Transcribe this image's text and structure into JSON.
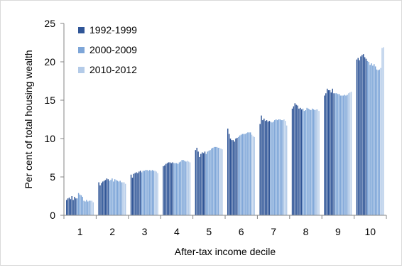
{
  "chart_data": {
    "type": "bar",
    "title": "",
    "xlabel": "After-tax income decile",
    "ylabel": "Per cent of total housing wealth",
    "ylim": [
      0,
      25
    ],
    "yticks": [
      "0",
      "5",
      "10",
      "15",
      "20",
      "25"
    ],
    "grid": false,
    "legend_position": "top-left",
    "categories": [
      "1",
      "2",
      "3",
      "4",
      "5",
      "6",
      "7",
      "8",
      "9",
      "10"
    ],
    "series": [
      {
        "name": "1992-1999",
        "color": "#2f5597",
        "values": [
          [
            2.0,
            2.2,
            2.3,
            2.1,
            2.5,
            2.0,
            2.4,
            2.2
          ],
          [
            4.3,
            3.9,
            4.2,
            4.4,
            4.5,
            4.6,
            4.8,
            4.7
          ],
          [
            5.3,
            4.9,
            5.4,
            5.5,
            5.6,
            5.5,
            5.7,
            5.8
          ],
          [
            6.4,
            6.5,
            6.7,
            6.8,
            6.9,
            6.9,
            6.8,
            6.9
          ],
          [
            8.5,
            8.8,
            8.3,
            7.6,
            8.0,
            8.2,
            8.1,
            8.3
          ],
          [
            11.3,
            10.6,
            10.0,
            9.8,
            9.8,
            9.6,
            10.0,
            10.1
          ],
          [
            11.9,
            13.0,
            12.4,
            12.6,
            12.3,
            12.4,
            12.2,
            12.3
          ],
          [
            13.9,
            14.2,
            14.6,
            14.4,
            14.3,
            13.9,
            14.0,
            13.8
          ],
          [
            15.6,
            15.9,
            16.5,
            16.3,
            16.3,
            16.0,
            16.5,
            15.9
          ],
          [
            20.3,
            20.5,
            20.2,
            20.7,
            20.9,
            21.0,
            20.6,
            20.4
          ]
        ]
      },
      {
        "name": "2000-2009",
        "color": "#7ea6d8",
        "values": [
          [
            2.2,
            2.9,
            2.7,
            2.6,
            2.4,
            1.9,
            1.8,
            2.0,
            1.8,
            1.9
          ],
          [
            4.5,
            4.6,
            4.8,
            4.4,
            4.7,
            4.6,
            4.5,
            4.4,
            4.5,
            4.3
          ],
          [
            5.6,
            5.8,
            5.8,
            5.9,
            5.9,
            5.8,
            5.9,
            5.8,
            5.9,
            5.8
          ],
          [
            6.8,
            6.8,
            6.8,
            6.7,
            6.9,
            7.0,
            7.2,
            7.2,
            7.1,
            7.0
          ],
          [
            8.0,
            8.3,
            8.4,
            8.5,
            8.7,
            8.8,
            8.9,
            8.9,
            8.9,
            8.8
          ],
          [
            10.2,
            10.4,
            10.5,
            10.6,
            10.6,
            10.6,
            10.7,
            10.8,
            10.8,
            10.8
          ],
          [
            12.2,
            12.1,
            12.2,
            12.4,
            12.5,
            12.4,
            12.5,
            12.5,
            12.4,
            12.4
          ],
          [
            13.9,
            13.6,
            13.7,
            14.0,
            13.9,
            13.8,
            13.7,
            13.9,
            13.8,
            13.7
          ],
          [
            15.9,
            15.9,
            15.8,
            15.8,
            15.6,
            15.6,
            15.6,
            15.7,
            15.6,
            15.7
          ],
          [
            20.1,
            20.0,
            19.6,
            19.8,
            19.5,
            19.7,
            19.4,
            19.0,
            18.9,
            19.0
          ]
        ]
      },
      {
        "name": "2010-2012",
        "color": "#b4cbe8",
        "values": [
          [
            1.9,
            1.9,
            1.7
          ],
          [
            4.3,
            4.3,
            4.1
          ],
          [
            5.8,
            5.7,
            5.5
          ],
          [
            7.1,
            7.0,
            6.9
          ],
          [
            8.8,
            8.7,
            8.6
          ],
          [
            10.5,
            10.3,
            10.2
          ],
          [
            12.5,
            12.3,
            11.7
          ],
          [
            13.8,
            13.8,
            13.6
          ],
          [
            15.9,
            16.0,
            16.1
          ],
          [
            19.2,
            21.8,
            21.9
          ]
        ]
      }
    ]
  }
}
